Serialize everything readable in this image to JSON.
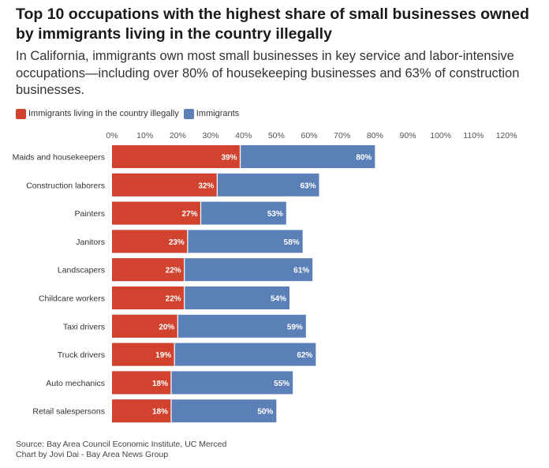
{
  "header": {
    "title": "Top 10 occupations with the highest share of small businesses owned by immigrants living in the country illegally",
    "subtitle": "In California, immigrants own most small businesses in key service and labor-intensive occupations—including over 80% of housekeeping businesses and 63% of construction businesses."
  },
  "legend": [
    {
      "label": "Immigrants living in the country illegally",
      "color": "#d1432f"
    },
    {
      "label": "Immigrants",
      "color": "#5b80b8"
    }
  ],
  "footer": {
    "source": "Source: Bay Area Council Economic Institute, UC Merced",
    "credit": "Chart by Jovi Dai - Bay Area News Group"
  },
  "chart_data": {
    "type": "bar",
    "orientation": "horizontal",
    "stacked": true,
    "categories": [
      "Maids and housekeepers",
      "Construction laborers",
      "Painters",
      "Janitors",
      "Landscapers",
      "Childcare workers",
      "Taxi drivers",
      "Truck drivers",
      "Auto mechanics",
      "Retail salespersons"
    ],
    "series": [
      {
        "name": "Immigrants living in the country illegally",
        "color": "#d1432f",
        "values": [
          39,
          32,
          27,
          23,
          22,
          22,
          20,
          19,
          18,
          18
        ],
        "labels": [
          "39%",
          "32%",
          "27%",
          "23%",
          "22%",
          "22%",
          "20%",
          "19%",
          "18%",
          "18%"
        ]
      },
      {
        "name": "Immigrants",
        "color": "#5b80b8",
        "values": [
          80,
          63,
          53,
          58,
          61,
          54,
          59,
          62,
          55,
          50
        ],
        "labels": [
          "80%",
          "63%",
          "53%",
          "58%",
          "61%",
          "54%",
          "59%",
          "62%",
          "55%",
          "50%"
        ]
      }
    ],
    "xlim": [
      0,
      120
    ],
    "xticks": [
      0,
      10,
      20,
      30,
      40,
      50,
      60,
      70,
      80,
      90,
      100,
      110,
      120
    ],
    "xtick_labels": [
      "0%",
      "10%",
      "20%",
      "30%",
      "40%",
      "50%",
      "60%",
      "70%",
      "80%",
      "90%",
      "100%",
      "110%",
      "120%"
    ],
    "legend_position": "top-left",
    "grid": false
  }
}
